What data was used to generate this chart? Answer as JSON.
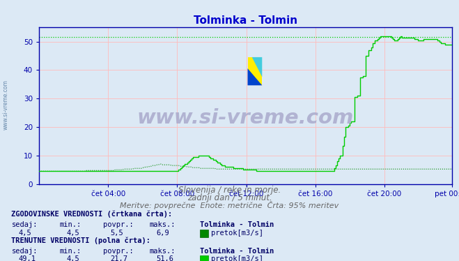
{
  "title": "Tolminka - Tolmin",
  "title_color": "#0000cc",
  "bg_color": "#dce9f5",
  "plot_bg_color": "#dce9f5",
  "xlabel_ticks": [
    "čet 04:00",
    "čet 08:00",
    "čet 12:00",
    "čet 16:00",
    "čet 20:00",
    "pet 00:00"
  ],
  "ylabel_ticks": [
    0,
    10,
    20,
    30,
    40,
    50
  ],
  "ylim": [
    0,
    55
  ],
  "xlim": [
    0,
    287
  ],
  "grid_color_pink": "#ffbbbb",
  "grid_color_red": "#ffaaaa",
  "axis_color": "#0000aa",
  "subtitle1": "Slovenija / reke in morje.",
  "subtitle2": "zadnji dan / 5 minut.",
  "subtitle3": "Meritve: povprečne  Enote: metrične  Črta: 95% meritev",
  "subtitle_color": "#666666",
  "watermark": "www.si-vreme.com",
  "watermark_color": "#aaaacc",
  "section1_title": "ZGODOVINSKE VREDNOSTI (črtkana črta):",
  "section1_sedaj": "4,5",
  "section1_min": "4,5",
  "section1_povpr": "5,5",
  "section1_maks": "6,9",
  "section1_name": "Tolminka - Tolmin",
  "section2_title": "TRENUTNE VREDNOSTI (polna črta):",
  "section2_sedaj": "49,1",
  "section2_min": "4,5",
  "section2_povpr": "21,7",
  "section2_maks": "51,6",
  "section2_name": "Tolminka - Tolmin",
  "legend_label": "pretok[m3/s]",
  "dotted_line_color": "#008800",
  "solid_line_color": "#00cc00",
  "dotted_horiz_color": "#00cc00",
  "dotted_horiz_y": 51.6,
  "marker_color": "#880000",
  "left_label_color": "#6688aa",
  "icon_yellow": "#ffee00",
  "icon_blue": "#0044cc",
  "icon_teal": "#44ccdd"
}
